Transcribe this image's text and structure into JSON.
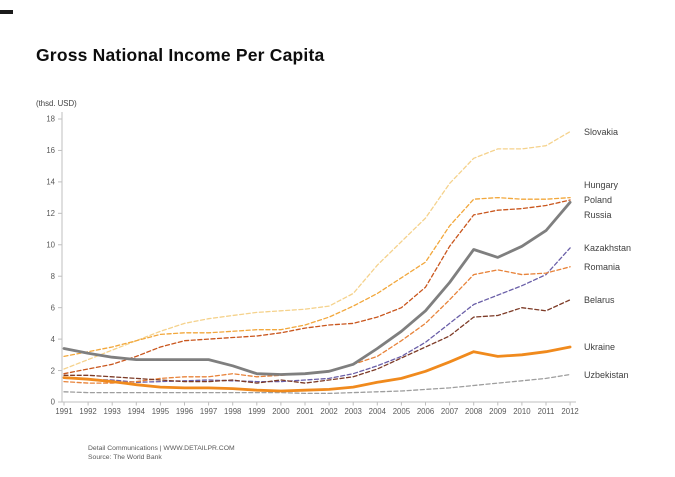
{
  "header": {
    "title": "Gross National Income Per Capita"
  },
  "chart_data": {
    "type": "line",
    "title": "Gross National Income Per Capita",
    "unit_label": "(thsd. USD)",
    "ylim": [
      0,
      18
    ],
    "ytick_step": 2,
    "grid": false,
    "legend_position": "right",
    "x": [
      1991,
      1992,
      1993,
      1994,
      1995,
      1996,
      1997,
      1998,
      1999,
      2000,
      2001,
      2002,
      2003,
      2004,
      2005,
      2006,
      2007,
      2008,
      2009,
      2010,
      2011,
      2012
    ],
    "series": [
      {
        "name": "Slovakia",
        "color": "#F5D28C",
        "style": "dashed",
        "values": [
          2.1,
          2.7,
          3.3,
          3.9,
          4.5,
          5.0,
          5.3,
          5.5,
          5.7,
          5.8,
          5.9,
          6.1,
          6.9,
          8.7,
          10.2,
          11.7,
          13.9,
          15.5,
          16.1,
          16.1,
          16.3,
          17.2
        ]
      },
      {
        "name": "Hungary",
        "color": "#F2A73B",
        "style": "dashed",
        "values": [
          2.9,
          3.2,
          3.5,
          3.9,
          4.3,
          4.4,
          4.4,
          4.5,
          4.6,
          4.6,
          4.9,
          5.4,
          6.1,
          6.9,
          7.9,
          8.9,
          11.2,
          12.9,
          13.0,
          12.9,
          12.9,
          13.0
        ]
      },
      {
        "name": "Poland",
        "color": "#C9561D",
        "style": "dashed",
        "values": [
          1.8,
          2.1,
          2.4,
          2.9,
          3.5,
          3.9,
          4.0,
          4.1,
          4.2,
          4.4,
          4.7,
          4.9,
          5.0,
          5.4,
          6.0,
          7.3,
          9.9,
          11.9,
          12.2,
          12.3,
          12.5,
          12.85
        ]
      },
      {
        "name": "Russia",
        "color": "#7F7F7F",
        "style": "solid",
        "values": [
          3.4,
          3.1,
          2.85,
          2.7,
          2.7,
          2.7,
          2.7,
          2.3,
          1.8,
          1.75,
          1.8,
          1.95,
          2.4,
          3.4,
          4.5,
          5.8,
          7.6,
          9.7,
          9.2,
          9.9,
          10.9,
          12.7
        ]
      },
      {
        "name": "Kazakhstan",
        "color": "#6A5FA8",
        "style": "dashed",
        "values": [
          1.5,
          1.45,
          1.4,
          1.25,
          1.3,
          1.35,
          1.4,
          1.35,
          1.3,
          1.3,
          1.4,
          1.5,
          1.8,
          2.3,
          2.9,
          3.8,
          5.0,
          6.2,
          6.8,
          7.4,
          8.1,
          9.8
        ]
      },
      {
        "name": "Romania",
        "color": "#E8833A",
        "style": "dashed",
        "values": [
          1.3,
          1.2,
          1.2,
          1.3,
          1.5,
          1.6,
          1.6,
          1.8,
          1.6,
          1.7,
          1.8,
          2.0,
          2.4,
          2.9,
          3.9,
          5.0,
          6.5,
          8.1,
          8.4,
          8.1,
          8.2,
          8.6
        ]
      },
      {
        "name": "Belarus",
        "color": "#7D3B27",
        "style": "dashed",
        "values": [
          1.7,
          1.7,
          1.6,
          1.5,
          1.4,
          1.3,
          1.3,
          1.4,
          1.2,
          1.4,
          1.2,
          1.4,
          1.6,
          2.1,
          2.8,
          3.5,
          4.2,
          5.4,
          5.5,
          6.0,
          5.8,
          6.5
        ]
      },
      {
        "name": "Ukraine",
        "color": "#F08A1D",
        "style": "solid",
        "values": [
          1.55,
          1.45,
          1.3,
          1.1,
          0.95,
          0.9,
          0.9,
          0.85,
          0.75,
          0.7,
          0.75,
          0.8,
          0.95,
          1.25,
          1.5,
          1.95,
          2.55,
          3.2,
          2.9,
          3.0,
          3.2,
          3.5
        ]
      },
      {
        "name": "Uzbekistan",
        "color": "#9E9E9E",
        "style": "dashed",
        "values": [
          0.65,
          0.6,
          0.6,
          0.6,
          0.6,
          0.6,
          0.6,
          0.6,
          0.6,
          0.6,
          0.55,
          0.55,
          0.6,
          0.65,
          0.7,
          0.8,
          0.9,
          1.05,
          1.2,
          1.35,
          1.5,
          1.75
        ]
      }
    ]
  },
  "footer": {
    "line1": "Detail Communications |  WWW.DETAILPR.COM",
    "line2": "Source: The World Bank"
  }
}
